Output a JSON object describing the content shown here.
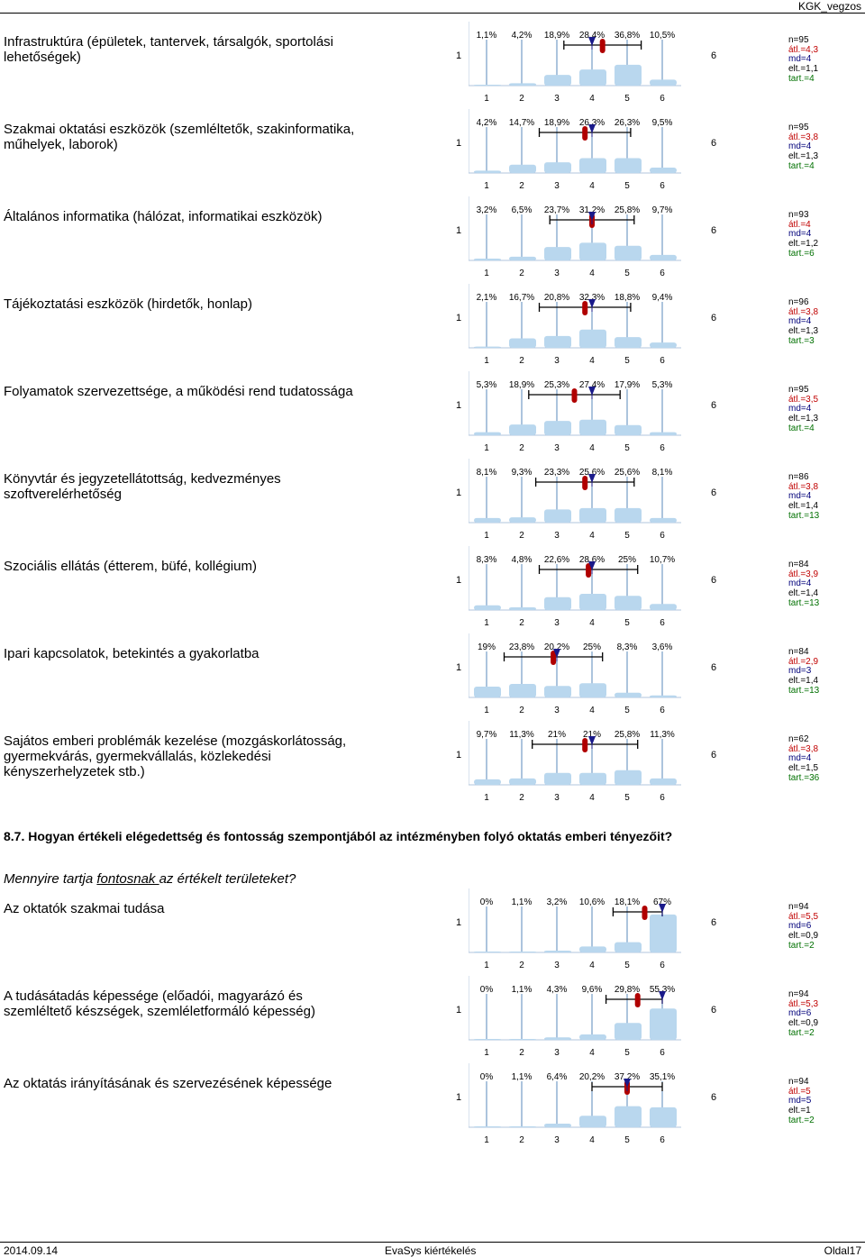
{
  "header": {
    "right": "KGK_vegzos"
  },
  "scale": {
    "min": "1",
    "max": "6",
    "ticks": [
      "1",
      "2",
      "3",
      "4",
      "5",
      "6"
    ]
  },
  "section": {
    "title": "8.7. Hogyan értékeli elégedettség és fontosság szempontjából az intézményben folyó oktatás emberi tényezőit?",
    "subq_pre": "Mennyire tartja ",
    "subq_em": "fontosnak ",
    "subq_post": "az értékelt területeket?"
  },
  "colors": {
    "bar": "#b9d7ee",
    "grid": "#5a88bb",
    "mean": "#b00000",
    "median": "#1a1a8a"
  },
  "items": [
    {
      "text": "Infrastruktúra (épületek, tantervek, társalgók, sportolási lehetőségek)",
      "pcts": [
        "1,1%",
        "4,2%",
        "18,9%",
        "28,4%",
        "36,8%",
        "10,5%"
      ],
      "values": [
        1.1,
        4.2,
        18.9,
        28.4,
        36.8,
        10.5
      ],
      "mean": 4.3,
      "median": 4,
      "sd": 1.1,
      "n": "n=95",
      "avg": "átl.=4,3",
      "md": "md=4",
      "sd_txt": "elt.=1,1",
      "abs": "tart.=4"
    },
    {
      "text": "Szakmai oktatási eszközök (szemléltetők, szakinformatika, műhelyek, laborok)",
      "pcts": [
        "4,2%",
        "14,7%",
        "18,9%",
        "26,3%",
        "26,3%",
        "9,5%"
      ],
      "values": [
        4.2,
        14.7,
        18.9,
        26.3,
        26.3,
        9.5
      ],
      "mean": 3.8,
      "median": 4,
      "sd": 1.3,
      "n": "n=95",
      "avg": "átl.=3,8",
      "md": "md=4",
      "sd_txt": "elt.=1,3",
      "abs": "tart.=4"
    },
    {
      "text": "Általános informatika (hálózat, informatikai eszközök)",
      "pcts": [
        "3,2%",
        "6,5%",
        "23,7%",
        "31,2%",
        "25,8%",
        "9,7%"
      ],
      "values": [
        3.2,
        6.5,
        23.7,
        31.2,
        25.8,
        9.7
      ],
      "mean": 4,
      "median": 4,
      "sd": 1.2,
      "n": "n=93",
      "avg": "átl.=4",
      "md": "md=4",
      "sd_txt": "elt.=1,2",
      "abs": "tart.=6"
    },
    {
      "text": "Tájékoztatási eszközök (hirdetők, honlap)",
      "pcts": [
        "2,1%",
        "16,7%",
        "20,8%",
        "32,3%",
        "18,8%",
        "9,4%"
      ],
      "values": [
        2.1,
        16.7,
        20.8,
        32.3,
        18.8,
        9.4
      ],
      "mean": 3.8,
      "median": 4,
      "sd": 1.3,
      "n": "n=96",
      "avg": "átl.=3,8",
      "md": "md=4",
      "sd_txt": "elt.=1,3",
      "abs": "tart.=3"
    },
    {
      "text": "Folyamatok szervezettsége, a működési rend tudatossága",
      "pcts": [
        "5,3%",
        "18,9%",
        "25,3%",
        "27,4%",
        "17,9%",
        "5,3%"
      ],
      "values": [
        5.3,
        18.9,
        25.3,
        27.4,
        17.9,
        5.3
      ],
      "mean": 3.5,
      "median": 4,
      "sd": 1.3,
      "n": "n=95",
      "avg": "átl.=3,5",
      "md": "md=4",
      "sd_txt": "elt.=1,3",
      "abs": "tart.=4"
    },
    {
      "text": "Könyvtár és jegyzetellátottság, kedvezményes szoftverelérhetőség",
      "pcts": [
        "8,1%",
        "9,3%",
        "23,3%",
        "25,6%",
        "25,6%",
        "8,1%"
      ],
      "values": [
        8.1,
        9.3,
        23.3,
        25.6,
        25.6,
        8.1
      ],
      "mean": 3.8,
      "median": 4,
      "sd": 1.4,
      "n": "n=86",
      "avg": "átl.=3,8",
      "md": "md=4",
      "sd_txt": "elt.=1,4",
      "abs": "tart.=13"
    },
    {
      "text": "Szociális ellátás (étterem, büfé, kollégium)",
      "pcts": [
        "8,3%",
        "4,8%",
        "22,6%",
        "28,6%",
        "25%",
        "10,7%"
      ],
      "values": [
        8.3,
        4.8,
        22.6,
        28.6,
        25,
        10.7
      ],
      "mean": 3.9,
      "median": 4,
      "sd": 1.4,
      "n": "n=84",
      "avg": "átl.=3,9",
      "md": "md=4",
      "sd_txt": "elt.=1,4",
      "abs": "tart.=13"
    },
    {
      "text": "Ipari kapcsolatok, betekintés a gyakorlatba",
      "pcts": [
        "19%",
        "23,8%",
        "20,2%",
        "25%",
        "8,3%",
        "3,6%"
      ],
      "values": [
        19,
        23.8,
        20.2,
        25,
        8.3,
        3.6
      ],
      "mean": 2.9,
      "median": 3,
      "sd": 1.4,
      "n": "n=84",
      "avg": "átl.=2,9",
      "md": "md=3",
      "sd_txt": "elt.=1,4",
      "abs": "tart.=13"
    },
    {
      "text": "Sajátos emberi problémák kezelése (mozgáskorlátosság, gyermekvárás, gyermekvállalás, közlekedési kényszerhelyzetek stb.)",
      "pcts": [
        "9,7%",
        "11,3%",
        "21%",
        "21%",
        "25,8%",
        "11,3%"
      ],
      "values": [
        9.7,
        11.3,
        21,
        21,
        25.8,
        11.3
      ],
      "mean": 3.8,
      "median": 4,
      "sd": 1.5,
      "n": "n=62",
      "avg": "átl.=3,8",
      "md": "md=4",
      "sd_txt": "elt.=1,5",
      "abs": "tart.=36"
    },
    {
      "text": "Az oktatók szakmai tudása",
      "pcts": [
        "0%",
        "1,1%",
        "3,2%",
        "10,6%",
        "18,1%",
        "67%"
      ],
      "values": [
        0,
        1.1,
        3.2,
        10.6,
        18.1,
        67
      ],
      "mean": 5.5,
      "median": 6,
      "sd": 0.9,
      "n": "n=94",
      "avg": "átl.=5,5",
      "md": "md=6",
      "sd_txt": "elt.=0,9",
      "abs": "tart.=2"
    },
    {
      "text": "A tudásátadás képessége (előadói, magyarázó és szemléltető készségek, szemléletformáló képesség)",
      "pcts": [
        "0%",
        "1,1%",
        "4,3%",
        "9,6%",
        "29,8%",
        "55,3%"
      ],
      "values": [
        0,
        1.1,
        4.3,
        9.6,
        29.8,
        55.3
      ],
      "mean": 5.3,
      "median": 6,
      "sd": 0.9,
      "n": "n=94",
      "avg": "átl.=5,3",
      "md": "md=6",
      "sd_txt": "elt.=0,9",
      "abs": "tart.=2"
    },
    {
      "text": "Az oktatás irányításának és szervezésének képessége",
      "pcts": [
        "0%",
        "1,1%",
        "6,4%",
        "20,2%",
        "37,2%",
        "35,1%"
      ],
      "values": [
        0,
        1.1,
        6.4,
        20.2,
        37.2,
        35.1
      ],
      "mean": 5,
      "median": 5,
      "sd": 1,
      "n": "n=94",
      "avg": "átl.=5",
      "md": "md=5",
      "sd_txt": "elt.=1",
      "abs": "tart.=2"
    }
  ],
  "footer": {
    "date": "2014.09.14",
    "center": "EvaSys kiértékelés",
    "page": "Oldal17"
  }
}
